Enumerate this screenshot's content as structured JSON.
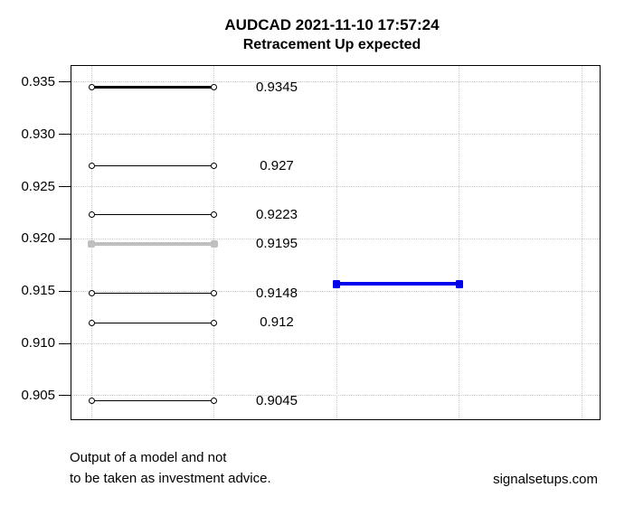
{
  "header": {
    "title": "AUDCAD 2021-11-10 17:57:24",
    "subtitle": "Retracement Up expected"
  },
  "footer": {
    "disclaimer_line1": "Output of a model and not",
    "disclaimer_line2": "to be taken as investment advice.",
    "watermark": "signalsetups.com"
  },
  "colors": {
    "level_line": "#000000",
    "highlight_level_line": "#bfbfbf",
    "signal_line": "#0000ee",
    "grid_line": "#c9c9c9",
    "axis": "#000000",
    "text": "#000000",
    "background": "#ffffff"
  },
  "chart_data": {
    "type": "line",
    "title": "AUDCAD 2021-11-10 17:57:24",
    "subtitle": "Retracement Up expected",
    "xlabel": "",
    "ylabel": "",
    "ylim": [
      0.9028,
      0.9366
    ],
    "x_axis_labels_visible": false,
    "grid": {
      "style": "dotted",
      "horizontal": true,
      "vertical": true
    },
    "y_ticks": [
      {
        "value": 0.935,
        "label": "0.935"
      },
      {
        "value": 0.93,
        "label": "0.930"
      },
      {
        "value": 0.925,
        "label": "0.925"
      },
      {
        "value": 0.92,
        "label": "0.920"
      },
      {
        "value": 0.915,
        "label": "0.915"
      },
      {
        "value": 0.91,
        "label": "0.910"
      },
      {
        "value": 0.905,
        "label": "0.905"
      }
    ],
    "retracement_levels": [
      {
        "value": 0.9345,
        "label": "0.9345",
        "style": "thick-black",
        "marker": "open-circle"
      },
      {
        "value": 0.927,
        "label": "0.927",
        "style": "thin-black",
        "marker": "open-circle"
      },
      {
        "value": 0.9223,
        "label": "0.9223",
        "style": "thin-black",
        "marker": "open-circle"
      },
      {
        "value": 0.9195,
        "label": "0.9195",
        "style": "thick-gray",
        "marker": "filled-gray"
      },
      {
        "value": 0.9148,
        "label": "0.9148",
        "style": "thin-black",
        "marker": "open-circle"
      },
      {
        "value": 0.912,
        "label": "0.912",
        "style": "thin-black",
        "marker": "open-circle"
      },
      {
        "value": 0.9045,
        "label": "0.9045",
        "style": "thin-black",
        "marker": "open-circle"
      }
    ],
    "signal_segment": {
      "value_estimate": 0.9157,
      "style": "thick-blue",
      "marker": "filled-blue-cross"
    }
  }
}
